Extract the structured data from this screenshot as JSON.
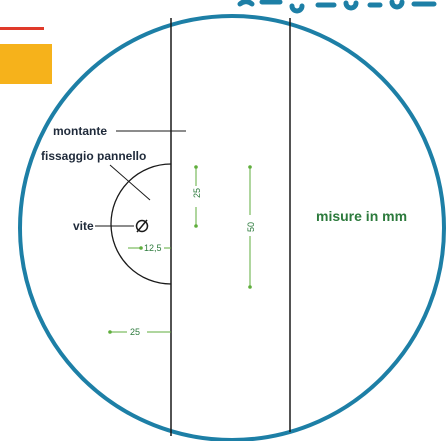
{
  "colors": {
    "circle": "#1d7fa6",
    "lines": "#1a1a1a",
    "measure": "#5fae3c",
    "header": "#1d7fa6",
    "red_bar": "#e03a2a",
    "orange_block": "#f6b21b"
  },
  "header_text": "p...",
  "labels": {
    "montante": "montante",
    "fissaggio": "fissaggio pannello",
    "vite": "vite"
  },
  "units_note": "misure in mm",
  "measures": {
    "m12_5": "12,5",
    "m25_bottom": "25",
    "m25_vertical": "25",
    "m50_vertical": "50"
  }
}
